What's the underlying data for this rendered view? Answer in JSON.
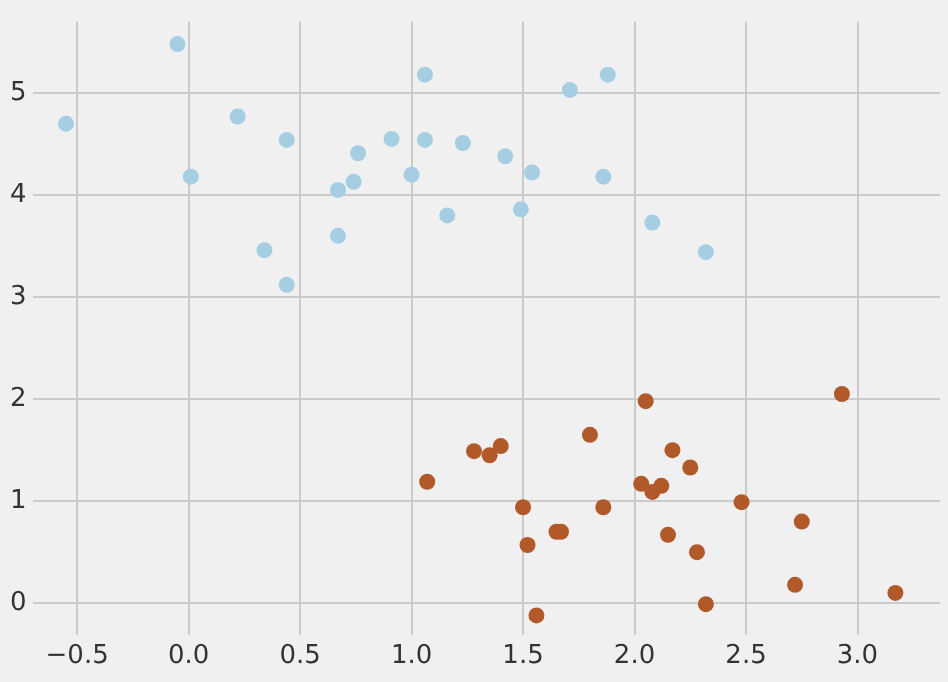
{
  "chart_data": {
    "type": "scatter",
    "xlim": [
      -0.7,
      3.37
    ],
    "ylim": [
      -0.31,
      5.7
    ],
    "xticks": [
      {
        "value": -0.5,
        "label": "−0.5"
      },
      {
        "value": 0,
        "label": "0.0"
      },
      {
        "value": 0.5,
        "label": "0.5"
      },
      {
        "value": 1,
        "label": "1.0"
      },
      {
        "value": 1.5,
        "label": "1.5"
      },
      {
        "value": 2,
        "label": "2.0"
      },
      {
        "value": 2.5,
        "label": "2.5"
      },
      {
        "value": 3,
        "label": "3.0"
      }
    ],
    "yticks": [
      0,
      1,
      2,
      3,
      4,
      5
    ],
    "grid": true,
    "legend": false,
    "marker": "circle",
    "series": [
      {
        "color": "#a6cee3",
        "x": [
          -0.55,
          -0.05,
          0.01,
          0.22,
          0.44,
          0.34,
          0.44,
          0.67,
          0.74,
          0.76,
          0.67,
          0.91,
          1.0,
          1.06,
          1.06,
          1.16,
          1.23,
          1.42,
          1.54,
          1.49,
          1.71,
          1.88,
          1.86,
          2.08,
          2.32
        ],
        "values": [
          4.7,
          5.48,
          4.18,
          4.77,
          4.54,
          3.46,
          3.12,
          4.05,
          4.13,
          4.41,
          3.6,
          4.55,
          4.2,
          5.18,
          4.54,
          3.8,
          4.51,
          4.38,
          4.22,
          3.86,
          5.03,
          5.18,
          4.18,
          3.73,
          3.44
        ]
      },
      {
        "color": "#b15928",
        "x": [
          1.07,
          1.28,
          1.35,
          1.4,
          1.5,
          1.52,
          1.56,
          1.65,
          1.67,
          1.8,
          1.86,
          2.05,
          2.03,
          2.08,
          2.12,
          2.17,
          2.25,
          2.15,
          2.28,
          2.32,
          2.48,
          2.75,
          2.72,
          2.93,
          3.17
        ],
        "values": [
          1.19,
          1.49,
          1.45,
          1.54,
          0.94,
          0.57,
          -0.12,
          0.7,
          0.7,
          1.65,
          0.94,
          1.98,
          1.17,
          1.09,
          1.15,
          1.5,
          1.33,
          0.67,
          0.5,
          -0.01,
          0.99,
          0.8,
          0.18,
          2.05,
          0.1
        ]
      }
    ]
  }
}
